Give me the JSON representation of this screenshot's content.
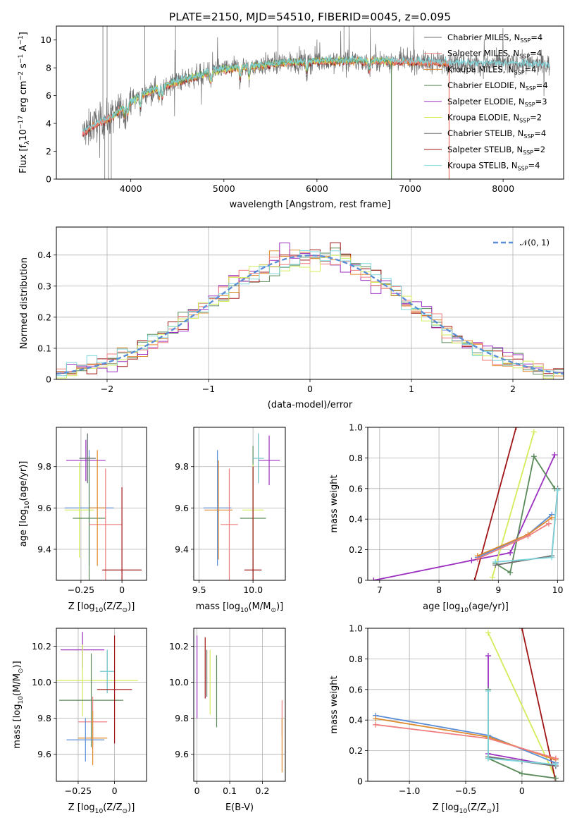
{
  "figure": {
    "title": "PLATE=2150, MJD=54510, FIBERID=0045, z=0.095"
  },
  "colors": {
    "chabrier_miles": "#5b8ed6",
    "salpeter_miles": "#f07e7e",
    "kroupa_miles": "#e08a2e",
    "chabrier_elodie": "#5a8a5a",
    "salpeter_elodie": "#9b30c0",
    "kroupa_elodie": "#d2ec5a",
    "chabrier_stelib": "#6e6e6e",
    "salpeter_stelib": "#a01515",
    "kroupa_stelib": "#7ed6dc",
    "normal": "#5b8ed6"
  },
  "chart_data": [
    {
      "id": "spectrum",
      "type": "line",
      "xlabel": "wavelength [Angstrom, rest frame]",
      "ylabel_parts": [
        "Flux [f",
        "λ",
        "10",
        "−17",
        " erg cm",
        "−2",
        " s",
        "−1",
        " A",
        "−1",
        "]"
      ],
      "xlim": [
        3200,
        8650
      ],
      "ylim": [
        0,
        11
      ],
      "xticks": [
        4000,
        5000,
        6000,
        7000,
        8000
      ],
      "yticks": [
        0,
        2,
        4,
        6,
        8,
        10
      ],
      "grid": false,
      "legend_placement": "upper-right",
      "legend": [
        {
          "pre": "Chabrier MILES, N",
          "sub": "SSP",
          "post": "=4",
          "color_key": "chabrier_stelib"
        },
        {
          "pre": "Salpeter MILES, N",
          "sub": "SSP",
          "post": "=4",
          "color_key": "salpeter_miles"
        },
        {
          "pre": "Kroupa MILES, N",
          "sub": "SSP",
          "post": "=4",
          "color_key": "kroupa_miles"
        },
        {
          "pre": "Chabrier ELODIE, N",
          "sub": "SSP",
          "post": "=4",
          "color_key": "chabrier_elodie"
        },
        {
          "pre": "Salpeter ELODIE, N",
          "sub": "SSP",
          "post": "=3",
          "color_key": "salpeter_elodie"
        },
        {
          "pre": "Kroupa ELODIE, N",
          "sub": "SSP",
          "post": "=2",
          "color_key": "kroupa_elodie"
        },
        {
          "pre": "Chabrier STELIB, N",
          "sub": "SSP",
          "post": "=4",
          "color_key": "chabrier_stelib"
        },
        {
          "pre": "Salpeter STELIB, N",
          "sub": "SSP",
          "post": "=2",
          "color_key": "salpeter_stelib"
        },
        {
          "pre": "Kroupa STELIB, N",
          "sub": "SSP",
          "post": "=4",
          "color_key": "kroupa_stelib"
        }
      ],
      "continuum": [
        [
          3480,
          3.3
        ],
        [
          3600,
          3.9
        ],
        [
          3800,
          4.5
        ],
        [
          3950,
          5.4
        ],
        [
          4100,
          6.0
        ],
        [
          4300,
          6.6
        ],
        [
          4500,
          7.0
        ],
        [
          4700,
          7.4
        ],
        [
          4900,
          7.8
        ],
        [
          5100,
          8.0
        ],
        [
          5400,
          8.2
        ],
        [
          5700,
          8.4
        ],
        [
          6000,
          8.5
        ],
        [
          6400,
          8.5
        ],
        [
          6800,
          8.5
        ],
        [
          7200,
          8.4
        ],
        [
          7600,
          8.3
        ],
        [
          8000,
          8.3
        ],
        [
          8500,
          8.2
        ]
      ],
      "model_ranges": [
        {
          "color_key": "salpeter_stelib",
          "xmin": 3480,
          "xmax": 7420
        },
        {
          "color_key": "kroupa_miles",
          "xmin": 3480,
          "xmax": 7420
        },
        {
          "color_key": "salpeter_miles",
          "xmin": 3480,
          "xmax": 7420
        },
        {
          "color_key": "kroupa_elodie",
          "xmin": 3800,
          "xmax": 6800
        },
        {
          "color_key": "chabrier_elodie",
          "xmin": 3800,
          "xmax": 6800
        },
        {
          "color_key": "kroupa_stelib",
          "xmin": 3480,
          "xmax": 8500
        }
      ]
    },
    {
      "id": "residuals",
      "type": "histogram",
      "xlabel": "(data-model)/error",
      "ylabel": "Normed distribution",
      "xlim": [
        -2.5,
        2.5
      ],
      "ylim": [
        0,
        0.49
      ],
      "xticks": [
        -2,
        -1,
        0,
        1,
        2
      ],
      "yticks": [
        0.0,
        0.1,
        0.2,
        0.3,
        0.4
      ],
      "grid": true,
      "legend_placement": "upper-right",
      "legend_label": "𝒩(0, 1)",
      "normal_sigma": 1.0,
      "bin_width": 0.1,
      "series_color_keys": [
        "chabrier_elodie",
        "salpeter_stelib",
        "kroupa_miles",
        "salpeter_elodie",
        "salpeter_miles",
        "kroupa_elodie",
        "kroupa_stelib"
      ]
    },
    {
      "id": "age_vs_Z",
      "type": "errorbar",
      "xlabel_parts": [
        "Z [log",
        "10",
        "(Z/Z",
        "⊙",
        ")]"
      ],
      "ylabel_parts": [
        "age  [log",
        "10",
        "(age/yr)]"
      ],
      "xlim": [
        -0.4,
        0.15
      ],
      "ylim": [
        9.25,
        9.99
      ],
      "xticks": [
        -0.25,
        0.0
      ],
      "yticks": [
        9.4,
        9.6,
        9.8
      ],
      "grid": true,
      "points": [
        {
          "color_key": "salpeter_elodie",
          "x": -0.22,
          "xerr": 0.12,
          "y": 9.83,
          "yerr": 0.1
        },
        {
          "color_key": "chabrier_miles",
          "x": -0.2,
          "xerr": 0.15,
          "y": 9.6,
          "yerr": 0.28
        },
        {
          "color_key": "kroupa_elodie",
          "x": -0.26,
          "xerr": 0.09,
          "y": 9.59,
          "yerr": 0.23
        },
        {
          "color_key": "chabrier_elodie",
          "x": -0.2,
          "xerr": 0.1,
          "y": 9.55,
          "yerr": 0.3
        },
        {
          "color_key": "kroupa_stelib",
          "x": -0.21,
          "xerr": 0.05,
          "y": 9.84,
          "yerr": 0.12
        },
        {
          "color_key": "chabrier_stelib",
          "x": -0.21,
          "xerr": 0.05,
          "y": 9.84,
          "yerr": 0.12
        },
        {
          "color_key": "salpeter_miles",
          "x": -0.1,
          "xerr": 0.1,
          "y": 9.52,
          "yerr": 0.27
        },
        {
          "color_key": "salpeter_stelib",
          "x": 0.0,
          "xerr": 0.12,
          "y": 9.3,
          "yerr": 0.4
        },
        {
          "color_key": "kroupa_miles",
          "x": -0.15,
          "xerr": 0.05,
          "y": 9.6,
          "yerr": 0.28
        }
      ]
    },
    {
      "id": "age_vs_mass",
      "type": "errorbar",
      "xlabel_parts": [
        "mass [log",
        "10",
        "(M/M",
        "⊙",
        ")]"
      ],
      "ylabel": "",
      "xlim": [
        9.45,
        10.3
      ],
      "ylim": [
        9.25,
        9.99
      ],
      "xticks": [
        9.5,
        10.0
      ],
      "yticks": [
        9.4,
        9.6,
        9.8
      ],
      "grid": true,
      "points": [
        {
          "color_key": "chabrier_miles",
          "x": 9.67,
          "xerr": 0.13,
          "y": 9.6,
          "yerr": 0.28
        },
        {
          "color_key": "kroupa_miles",
          "x": 9.68,
          "xerr": 0.13,
          "y": 9.59,
          "yerr": 0.24
        },
        {
          "color_key": "salpeter_miles",
          "x": 9.78,
          "xerr": 0.08,
          "y": 9.52,
          "yerr": 0.27
        },
        {
          "color_key": "salpeter_elodie",
          "x": 10.15,
          "xerr": 0.1,
          "y": 9.83,
          "yerr": 0.12
        },
        {
          "color_key": "chabrier_elodie",
          "x": 10.0,
          "xerr": 0.12,
          "y": 9.55,
          "yerr": 0.35
        },
        {
          "color_key": "kroupa_elodie",
          "x": 10.0,
          "xerr": 0.1,
          "y": 9.59,
          "yerr": 0.22
        },
        {
          "color_key": "chabrier_stelib",
          "x": 10.05,
          "xerr": 0.05,
          "y": 9.84,
          "yerr": 0.12
        },
        {
          "color_key": "kroupa_stelib",
          "x": 10.05,
          "xerr": 0.05,
          "y": 9.84,
          "yerr": 0.12
        },
        {
          "color_key": "salpeter_stelib",
          "x": 10.0,
          "xerr": 0.08,
          "y": 9.3,
          "yerr": 0.5
        }
      ]
    },
    {
      "id": "weight_vs_age",
      "type": "line",
      "xlabel_parts": [
        "age  [log",
        "10",
        "(age/yr)]"
      ],
      "ylabel": "mass weight",
      "xlim": [
        6.8,
        10.1
      ],
      "ylim": [
        0,
        1
      ],
      "xticks": [
        7,
        8,
        9,
        10
      ],
      "yticks": [
        0.0,
        0.2,
        0.4,
        0.6,
        0.8,
        1.0
      ],
      "grid": true,
      "series": [
        {
          "color_key": "salpeter_elodie",
          "points": [
            [
              6.9,
              0.0
            ],
            [
              8.55,
              0.13
            ],
            [
              9.2,
              0.18
            ],
            [
              9.95,
              0.82
            ]
          ]
        },
        {
          "color_key": "salpeter_stelib",
          "points": [
            [
              8.6,
              0.0
            ],
            [
              9.3,
              1.0
            ]
          ]
        },
        {
          "color_key": "kroupa_elodie",
          "points": [
            [
              8.9,
              0.02
            ],
            [
              9.6,
              0.97
            ]
          ]
        },
        {
          "color_key": "chabrier_elodie",
          "points": [
            [
              8.95,
              0.11
            ],
            [
              9.2,
              0.05
            ],
            [
              9.6,
              0.81
            ],
            [
              9.95,
              0.6
            ]
          ]
        },
        {
          "color_key": "chabrier_miles",
          "points": [
            [
              8.65,
              0.15
            ],
            [
              9.5,
              0.3
            ],
            [
              9.9,
              0.43
            ]
          ]
        },
        {
          "color_key": "kroupa_miles",
          "points": [
            [
              8.65,
              0.16
            ],
            [
              9.5,
              0.3
            ],
            [
              9.9,
              0.41
            ]
          ]
        },
        {
          "color_key": "salpeter_miles",
          "points": [
            [
              8.65,
              0.14
            ],
            [
              9.5,
              0.29
            ],
            [
              9.85,
              0.37
            ]
          ]
        },
        {
          "color_key": "chabrier_stelib",
          "points": [
            [
              8.95,
              0.1
            ],
            [
              9.9,
              0.16
            ],
            [
              10.0,
              0.6
            ]
          ]
        },
        {
          "color_key": "kroupa_stelib",
          "points": [
            [
              8.95,
              0.12
            ],
            [
              9.9,
              0.15
            ],
            [
              10.0,
              0.59
            ]
          ]
        }
      ]
    },
    {
      "id": "mass_vs_Z",
      "type": "errorbar",
      "xlabel_parts": [
        "Z [log",
        "10",
        "(Z/Z",
        "⊙",
        ")]"
      ],
      "ylabel_parts": [
        "mass [log",
        "10",
        "(M/M",
        "⊙",
        ")]"
      ],
      "xlim": [
        -0.4,
        0.22
      ],
      "ylim": [
        9.45,
        10.3
      ],
      "xticks": [
        -0.25,
        0.0
      ],
      "yticks": [
        9.6,
        9.8,
        10.0,
        10.2
      ],
      "grid": true,
      "points": [
        {
          "color_key": "salpeter_elodie",
          "x": -0.22,
          "xerr": 0.15,
          "y": 10.18,
          "yerr": 0.1
        },
        {
          "color_key": "kroupa_elodie",
          "x": -0.22,
          "xerr": 0.38,
          "y": 10.01,
          "yerr": 0.2
        },
        {
          "color_key": "chabrier_elodie",
          "x": -0.16,
          "xerr": 0.22,
          "y": 9.9,
          "yerr": 0.26
        },
        {
          "color_key": "chabrier_stelib",
          "x": -0.05,
          "xerr": 0.05,
          "y": 10.06,
          "yerr": 0.12
        },
        {
          "color_key": "kroupa_stelib",
          "x": -0.05,
          "xerr": 0.05,
          "y": 10.06,
          "yerr": 0.12
        },
        {
          "color_key": "salpeter_stelib",
          "x": 0.0,
          "xerr": 0.12,
          "y": 9.96,
          "yerr": 0.3
        },
        {
          "color_key": "salpeter_miles",
          "x": -0.15,
          "xerr": 0.1,
          "y": 9.78,
          "yerr": 0.14
        },
        {
          "color_key": "kroupa_miles",
          "x": -0.15,
          "xerr": 0.1,
          "y": 9.69,
          "yerr": 0.15
        },
        {
          "color_key": "chabrier_miles",
          "x": -0.2,
          "xerr": 0.13,
          "y": 9.68,
          "yerr": 0.12
        }
      ]
    },
    {
      "id": "mass_vs_ebv",
      "type": "errorbar",
      "xlabel": "E(B-V)",
      "ylabel": "",
      "xlim": [
        -0.01,
        0.27
      ],
      "ylim": [
        9.45,
        10.3
      ],
      "xticks": [
        0.0,
        0.1,
        0.2
      ],
      "yticks": [
        9.6,
        9.8,
        10.0,
        10.2
      ],
      "grid": true,
      "points": [
        {
          "color_key": "salpeter_elodie",
          "x": 0.0,
          "xerr": 0.0,
          "y": 10.03,
          "yerr": 0.23
        },
        {
          "color_key": "salpeter_stelib",
          "x": 0.025,
          "xerr": 0.0,
          "y": 10.08,
          "yerr": 0.17
        },
        {
          "color_key": "chabrier_stelib",
          "x": 0.03,
          "xerr": 0.0,
          "y": 10.05,
          "yerr": 0.13
        },
        {
          "color_key": "kroupa_elodie",
          "x": 0.04,
          "xerr": 0.0,
          "y": 10.0,
          "yerr": 0.18
        },
        {
          "color_key": "chabrier_elodie",
          "x": 0.06,
          "xerr": 0.0,
          "y": 9.95,
          "yerr": 0.2
        },
        {
          "color_key": "salpeter_miles",
          "x": 0.26,
          "xerr": 0.0,
          "y": 9.8,
          "yerr": 0.1
        },
        {
          "color_key": "kroupa_miles",
          "x": 0.26,
          "xerr": 0.0,
          "y": 9.65,
          "yerr": 0.15
        }
      ]
    },
    {
      "id": "weight_vs_Z",
      "type": "line",
      "xlabel_parts": [
        "Z [log",
        "10",
        "(Z/Z",
        "⊙",
        ")]"
      ],
      "ylabel": "mass weight",
      "xlim": [
        -1.37,
        0.37
      ],
      "ylim": [
        0,
        1
      ],
      "xticks": [
        -1.0,
        -0.5,
        0.0
      ],
      "yticks": [
        0.0,
        0.2,
        0.4,
        0.6,
        0.8,
        1.0
      ],
      "grid": true,
      "series": [
        {
          "color_key": "kroupa_elodie",
          "points": [
            [
              -0.3,
              0.97
            ],
            [
              0.3,
              0.02
            ]
          ]
        },
        {
          "color_key": "salpeter_stelib",
          "points": [
            [
              0.0,
              1.0
            ],
            [
              0.3,
              0.0
            ]
          ]
        },
        {
          "color_key": "salpeter_elodie",
          "points": [
            [
              -0.3,
              0.82
            ],
            [
              -0.3,
              0.18
            ],
            [
              0.3,
              0.1
            ]
          ]
        },
        {
          "color_key": "chabrier_elodie",
          "points": [
            [
              -0.3,
              0.6
            ],
            [
              -0.3,
              0.15
            ],
            [
              0.0,
              0.05
            ],
            [
              0.3,
              0.02
            ]
          ]
        },
        {
          "color_key": "chabrier_miles",
          "points": [
            [
              -1.3,
              0.43
            ],
            [
              -0.3,
              0.3
            ],
            [
              0.3,
              0.12
            ]
          ]
        },
        {
          "color_key": "kroupa_miles",
          "points": [
            [
              -1.3,
              0.41
            ],
            [
              -0.3,
              0.29
            ],
            [
              0.3,
              0.14
            ]
          ]
        },
        {
          "color_key": "salpeter_miles",
          "points": [
            [
              -1.3,
              0.37
            ],
            [
              -0.3,
              0.28
            ],
            [
              0.3,
              0.15
            ]
          ]
        },
        {
          "color_key": "chabrier_stelib",
          "points": [
            [
              -0.3,
              0.16
            ],
            [
              0.0,
              0.13
            ],
            [
              0.3,
              0.1
            ]
          ]
        },
        {
          "color_key": "kroupa_stelib",
          "points": [
            [
              -0.3,
              0.59
            ],
            [
              -0.3,
              0.15
            ],
            [
              0.3,
              0.11
            ]
          ]
        }
      ]
    }
  ]
}
